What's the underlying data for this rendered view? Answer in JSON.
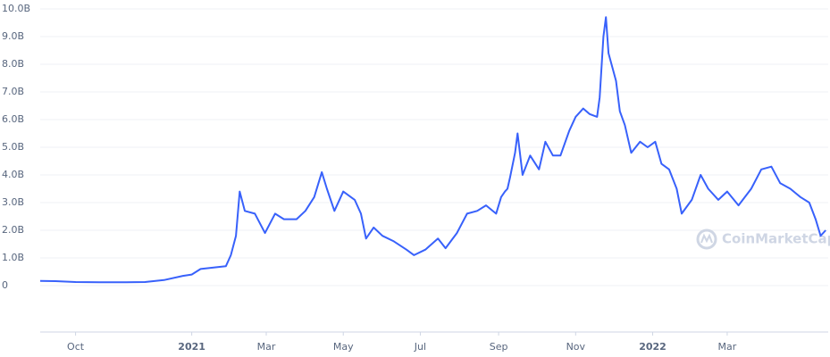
{
  "chart_data": {
    "type": "line",
    "watermark": "CoinMarketCap",
    "x": [
      "2020-09-03",
      "2020-09-15",
      "2020-10-01",
      "2020-10-20",
      "2020-11-10",
      "2020-11-25",
      "2020-12-10",
      "2020-12-25",
      "2021-01-01",
      "2021-01-08",
      "2021-01-28",
      "2021-02-01",
      "2021-02-05",
      "2021-02-08",
      "2021-02-12",
      "2021-02-20",
      "2021-02-28",
      "2021-03-08",
      "2021-03-15",
      "2021-03-25",
      "2021-04-01",
      "2021-04-08",
      "2021-04-14",
      "2021-04-18",
      "2021-04-24",
      "2021-05-01",
      "2021-05-10",
      "2021-05-15",
      "2021-05-19",
      "2021-05-25",
      "2021-06-01",
      "2021-06-10",
      "2021-06-20",
      "2021-06-26",
      "2021-07-05",
      "2021-07-15",
      "2021-07-21",
      "2021-07-30",
      "2021-08-07",
      "2021-08-15",
      "2021-08-22",
      "2021-08-30",
      "2021-09-03",
      "2021-09-06",
      "2021-09-08",
      "2021-09-10",
      "2021-09-14",
      "2021-09-16",
      "2021-09-20",
      "2021-09-26",
      "2021-10-03",
      "2021-10-08",
      "2021-10-14",
      "2021-10-20",
      "2021-10-27",
      "2021-11-01",
      "2021-11-07",
      "2021-11-12",
      "2021-11-18",
      "2021-11-20",
      "2021-11-23",
      "2021-11-25",
      "2021-11-27",
      "2021-11-30",
      "2021-12-03",
      "2021-12-06",
      "2021-12-10",
      "2021-12-15",
      "2021-12-22",
      "2021-12-28",
      "2022-01-03",
      "2022-01-08",
      "2022-01-14",
      "2022-01-20",
      "2022-01-24",
      "2022-02-01",
      "2022-02-08",
      "2022-02-14",
      "2022-02-22",
      "2022-03-01",
      "2022-03-10",
      "2022-03-20",
      "2022-03-28",
      "2022-04-05",
      "2022-04-12",
      "2022-04-20",
      "2022-04-28",
      "2022-05-05",
      "2022-05-10",
      "2022-05-14",
      "2022-05-18"
    ],
    "series": [
      {
        "color": "#3861fb",
        "values": [
          0.17,
          0.16,
          0.13,
          0.12,
          0.12,
          0.13,
          0.2,
          0.35,
          0.4,
          0.6,
          0.7,
          1.1,
          1.8,
          3.4,
          2.7,
          2.6,
          1.9,
          2.6,
          2.4,
          2.4,
          2.7,
          3.2,
          4.1,
          3.5,
          2.7,
          3.4,
          3.1,
          2.6,
          1.7,
          2.1,
          1.8,
          1.6,
          1.3,
          1.1,
          1.3,
          1.7,
          1.35,
          1.9,
          2.6,
          2.7,
          2.9,
          2.6,
          3.2,
          3.4,
          3.5,
          3.9,
          4.8,
          5.5,
          4.0,
          4.7,
          4.2,
          5.2,
          4.7,
          4.7,
          5.6,
          6.1,
          6.4,
          6.2,
          6.1,
          6.8,
          9.0,
          9.7,
          8.4,
          7.9,
          7.4,
          6.3,
          5.8,
          4.8,
          5.2,
          5.0,
          5.2,
          4.4,
          4.2,
          3.5,
          2.6,
          3.1,
          4.0,
          3.5,
          3.1,
          3.4,
          2.9,
          3.5,
          4.2,
          4.3,
          3.7,
          3.5,
          3.2,
          3.0,
          2.4,
          1.8,
          2.0
        ]
      }
    ],
    "xlim": [
      "2020-09-03",
      "2022-05-20"
    ],
    "xticks": [
      {
        "value": "2020-10-01",
        "label": "Oct"
      },
      {
        "value": "2021-01-01",
        "label": "2021"
      },
      {
        "value": "2021-03-01",
        "label": "Mar"
      },
      {
        "value": "2021-05-01",
        "label": "May"
      },
      {
        "value": "2021-07-01",
        "label": "Jul"
      },
      {
        "value": "2021-09-01",
        "label": "Sep"
      },
      {
        "value": "2021-11-01",
        "label": "Nov"
      },
      {
        "value": "2022-01-01",
        "label": "2022"
      },
      {
        "value": "2022-03-01",
        "label": "Mar"
      }
    ],
    "ylim": [
      0,
      10
    ],
    "yticks": [
      0,
      {
        "value": 1,
        "label": "1.0B"
      },
      {
        "value": 2,
        "label": "2.0B"
      },
      {
        "value": 3,
        "label": "3.0B"
      },
      {
        "value": 4,
        "label": "4.0B"
      },
      {
        "value": 5,
        "label": "5.0B"
      },
      {
        "value": 6,
        "label": "6.0B"
      },
      {
        "value": 7,
        "label": "7.0B"
      },
      {
        "value": 8,
        "label": "8.0B"
      },
      {
        "value": 9,
        "label": "9.0B"
      },
      {
        "value": 10,
        "label": "10.0B"
      }
    ],
    "grid": true
  }
}
